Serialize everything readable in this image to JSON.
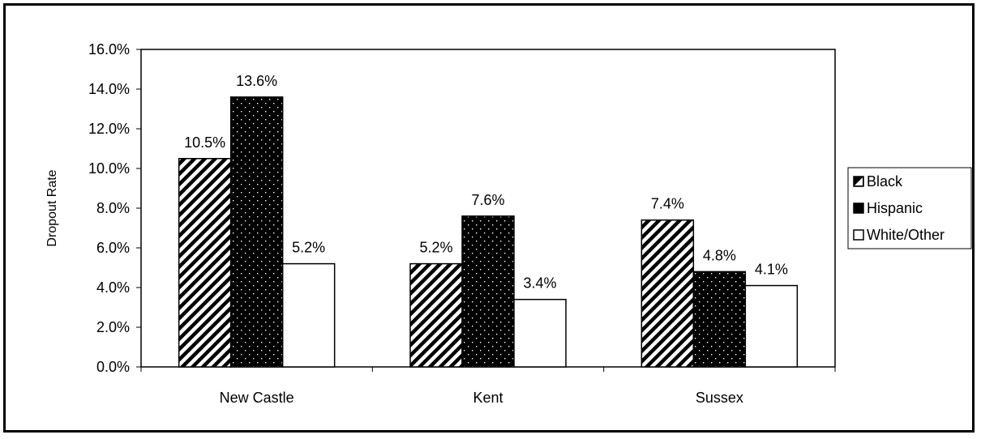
{
  "chart_data": {
    "type": "bar",
    "title": "",
    "xlabel": "",
    "ylabel": "Dropout Rate",
    "categories": [
      "New Castle",
      "Kent",
      "Sussex"
    ],
    "series": [
      {
        "name": "Black",
        "values": [
          10.5,
          5.2,
          7.4
        ],
        "pattern": "diagonal-stripes"
      },
      {
        "name": "Hispanic",
        "values": [
          13.6,
          7.6,
          4.8
        ],
        "pattern": "dotted-black"
      },
      {
        "name": "White/Other",
        "values": [
          5.2,
          3.4,
          4.1
        ],
        "pattern": "solid-white"
      }
    ],
    "ylim": [
      0,
      16
    ],
    "yticks": [
      "0.0%",
      "2.0%",
      "4.0%",
      "6.0%",
      "8.0%",
      "10.0%",
      "12.0%",
      "14.0%",
      "16.0%"
    ],
    "data_labels": [
      [
        "10.5%",
        "5.2%",
        "7.4%"
      ],
      [
        "13.6%",
        "7.6%",
        "4.8%"
      ],
      [
        "5.2%",
        "3.4%",
        "4.1%"
      ]
    ],
    "grid": false,
    "legend_position": "right"
  }
}
